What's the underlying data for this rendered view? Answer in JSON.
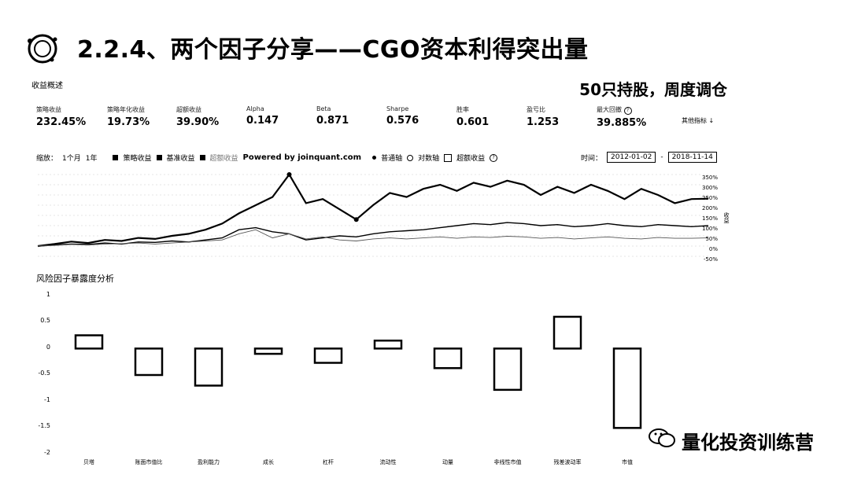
{
  "header": {
    "title": "2.2.4、两个因子分享——CGO资本利得突出量",
    "subtitle": "50只持股，周度调仓"
  },
  "summary": {
    "label": "收益概述",
    "other_metrics": "其他指标 ↓",
    "metrics": [
      {
        "label": "策略收益",
        "value": "232.45%"
      },
      {
        "label": "策略年化收益",
        "value": "19.73%"
      },
      {
        "label": "超额收益",
        "value": "39.90%"
      },
      {
        "label": "Alpha",
        "value": "0.147"
      },
      {
        "label": "Beta",
        "value": "0.871"
      },
      {
        "label": "Sharpe",
        "value": "0.576"
      },
      {
        "label": "胜率",
        "value": "0.601"
      },
      {
        "label": "盈亏比",
        "value": "1.253"
      },
      {
        "label": "最大回撤",
        "value": "39.885%"
      }
    ]
  },
  "toolbar": {
    "zoom_label": "缩放：",
    "zoom_1m": "1个月",
    "zoom_1y": "1年",
    "legend_strategy": "策略收益",
    "legend_benchmark": "基准收益",
    "legend_excess": "超额收益",
    "powered_by": "Powered by joinquant.com",
    "log_axis": "普通轴",
    "relative_axis": "对数轴",
    "excess_check": "超额收益",
    "time_label": "时间：",
    "date_from": "2012-01-02",
    "date_sep": "-",
    "date_to": "2018-11-14"
  },
  "returns_chart": {
    "y_ticks": [
      "350%",
      "300%",
      "250%",
      "200%",
      "150%",
      "100%",
      "50%",
      "0%",
      "-50%"
    ],
    "right_axis_label": "收益"
  },
  "risk": {
    "title": "风险因子暴露度分析",
    "y_ticks": [
      "1",
      "0.5",
      "0",
      "-0.5",
      "-1",
      "-1.5",
      "-2"
    ]
  },
  "chart_data": [
    {
      "type": "line",
      "title": "",
      "ylabel": "收益",
      "x_range": [
        "2012-01-02",
        "2018-11-14"
      ],
      "ylim": [
        -50,
        350
      ],
      "series": [
        {
          "name": "策略收益",
          "values": [
            0,
            10,
            22,
            15,
            30,
            25,
            40,
            35,
            50,
            60,
            80,
            110,
            160,
            200,
            240,
            350,
            210,
            230,
            180,
            130,
            200,
            260,
            240,
            280,
            300,
            270,
            310,
            290,
            320,
            300,
            250,
            290,
            260,
            300,
            270,
            230,
            280,
            250,
            210,
            230,
            232
          ]
        },
        {
          "name": "基准收益",
          "values": [
            0,
            5,
            10,
            8,
            15,
            10,
            20,
            18,
            25,
            20,
            30,
            40,
            80,
            90,
            70,
            60,
            30,
            40,
            50,
            45,
            60,
            70,
            75,
            80,
            90,
            100,
            110,
            105,
            115,
            110,
            100,
            105,
            95,
            100,
            110,
            100,
            95,
            105,
            100,
            95,
            100
          ]
        },
        {
          "name": "超额收益",
          "values": [
            0,
            3,
            8,
            5,
            10,
            12,
            15,
            10,
            15,
            20,
            25,
            30,
            60,
            80,
            40,
            60,
            35,
            45,
            30,
            25,
            35,
            40,
            35,
            40,
            45,
            38,
            45,
            42,
            48,
            45,
            38,
            42,
            35,
            40,
            45,
            38,
            35,
            42,
            38,
            38,
            40
          ]
        }
      ]
    },
    {
      "type": "bar",
      "title": "风险因子暴露度分析",
      "categories": [
        "贝塔",
        "账面市值比",
        "盈利能力",
        "成长",
        "杠杆",
        "流动性",
        "动量",
        "非线性市值",
        "残差波动率",
        "市值"
      ],
      "values": [
        0.25,
        -0.5,
        -0.7,
        -0.1,
        -0.27,
        0.15,
        -0.37,
        -0.78,
        0.6,
        -1.5
      ],
      "ylim": [
        -2,
        1
      ]
    }
  ]
}
